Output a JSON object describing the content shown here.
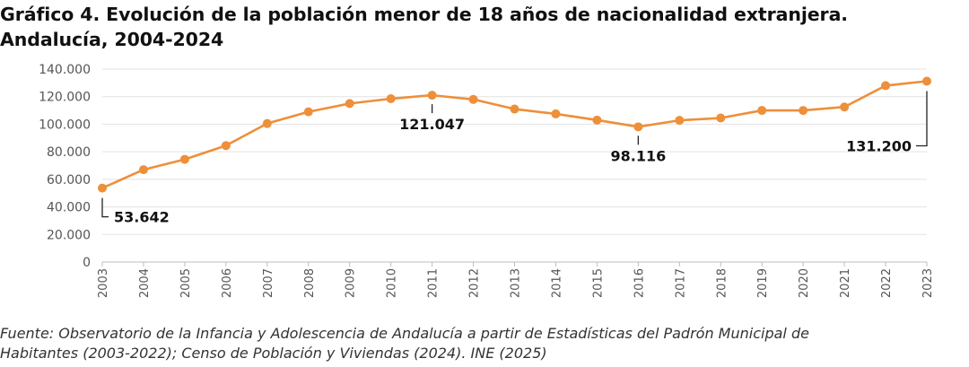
{
  "title": {
    "line1": "Gráfico 4. Evolución de la población menor de 18 años de nacionalidad extranjera.",
    "line2": "Andalucía, 2004-2024"
  },
  "source": {
    "line1": "Fuente: Observatorio de la Infancia y Adolescencia de Andalucía a partir de Estadísticas del Padrón Municipal de",
    "line2": "Habitantes (2003-2022); Censo de Población y Viviendas (2024). INE (2025)"
  },
  "chart_data": {
    "type": "line",
    "categories": [
      "2003",
      "2004",
      "2005",
      "2006",
      "2007",
      "2008",
      "2009",
      "2010",
      "2011",
      "2012",
      "2013",
      "2014",
      "2015",
      "2016",
      "2017",
      "2018",
      "2019",
      "2020",
      "2021",
      "2022",
      "2023"
    ],
    "values": [
      53642,
      67000,
      74500,
      84500,
      100500,
      109000,
      115000,
      118500,
      121047,
      118000,
      111000,
      107500,
      103000,
      98116,
      102800,
      104500,
      110000,
      110000,
      112500,
      128000,
      131200
    ],
    "ylim": [
      0,
      140000
    ],
    "yticks": [
      "0",
      "20.000",
      "40.000",
      "60.000",
      "80.000",
      "100.000",
      "120.000",
      "140.000"
    ],
    "ytick_values": [
      0,
      20000,
      40000,
      60000,
      80000,
      100000,
      120000,
      140000
    ],
    "grid": true,
    "color": "#ee8f3a",
    "annotations": [
      {
        "index": 0,
        "label": "53.642",
        "placement": "below-right"
      },
      {
        "index": 8,
        "label": "121.047",
        "placement": "below"
      },
      {
        "index": 13,
        "label": "98.116",
        "placement": "below"
      },
      {
        "index": 20,
        "label": "131.200",
        "placement": "below-left"
      }
    ]
  }
}
